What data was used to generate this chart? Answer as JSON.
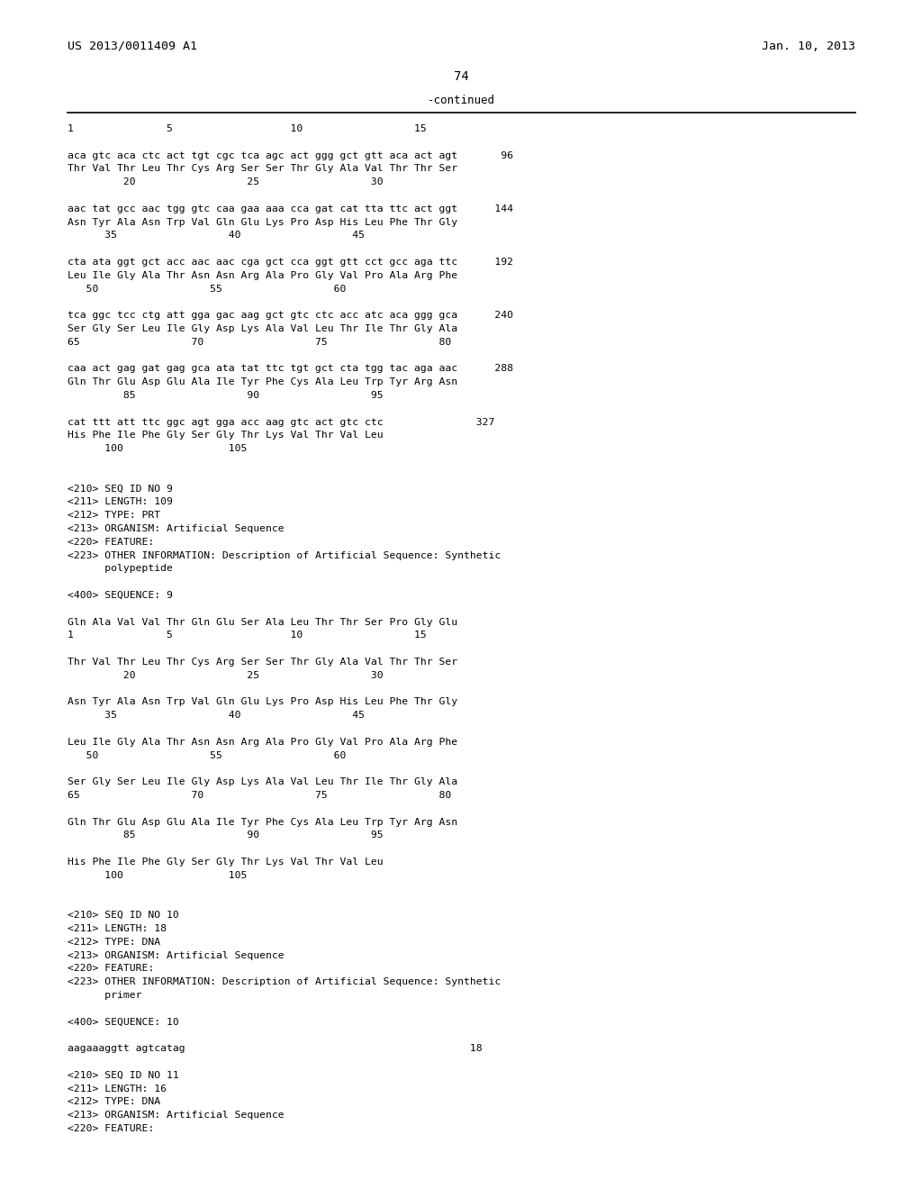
{
  "bg_color": "#ffffff",
  "header_left": "US 2013/0011409 A1",
  "header_right": "Jan. 10, 2013",
  "page_number": "74",
  "continued_label": "-continued",
  "lines": [
    "1               5                   10                  15",
    "",
    "aca gtc aca ctc act tgt cgc tca agc act ggg gct gtt aca act agt       96",
    "Thr Val Thr Leu Thr Cys Arg Ser Ser Thr Gly Ala Val Thr Thr Ser",
    "         20                  25                  30",
    "",
    "aac tat gcc aac tgg gtc caa gaa aaa cca gat cat tta ttc act ggt      144",
    "Asn Tyr Ala Asn Trp Val Gln Glu Lys Pro Asp His Leu Phe Thr Gly",
    "      35                  40                  45",
    "",
    "cta ata ggt gct acc aac aac cga gct cca ggt gtt cct gcc aga ttc      192",
    "Leu Ile Gly Ala Thr Asn Asn Arg Ala Pro Gly Val Pro Ala Arg Phe",
    "   50                  55                  60",
    "",
    "tca ggc tcc ctg att gga gac aag gct gtc ctc acc atc aca ggg gca      240",
    "Ser Gly Ser Leu Ile Gly Asp Lys Ala Val Leu Thr Ile Thr Gly Ala",
    "65                  70                  75                  80",
    "",
    "caa act gag gat gag gca ata tat ttc tgt gct cta tgg tac aga aac      288",
    "Gln Thr Glu Asp Glu Ala Ile Tyr Phe Cys Ala Leu Trp Tyr Arg Asn",
    "         85                  90                  95",
    "",
    "cat ttt att ttc ggc agt gga acc aag gtc act gtc ctc               327",
    "His Phe Ile Phe Gly Ser Gly Thr Lys Val Thr Val Leu",
    "      100                 105",
    "",
    "",
    "<210> SEQ ID NO 9",
    "<211> LENGTH: 109",
    "<212> TYPE: PRT",
    "<213> ORGANISM: Artificial Sequence",
    "<220> FEATURE:",
    "<223> OTHER INFORMATION: Description of Artificial Sequence: Synthetic",
    "      polypeptide",
    "",
    "<400> SEQUENCE: 9",
    "",
    "Gln Ala Val Val Thr Gln Glu Ser Ala Leu Thr Thr Ser Pro Gly Glu",
    "1               5                   10                  15",
    "",
    "Thr Val Thr Leu Thr Cys Arg Ser Ser Thr Gly Ala Val Thr Thr Ser",
    "         20                  25                  30",
    "",
    "Asn Tyr Ala Asn Trp Val Gln Glu Lys Pro Asp His Leu Phe Thr Gly",
    "      35                  40                  45",
    "",
    "Leu Ile Gly Ala Thr Asn Asn Arg Ala Pro Gly Val Pro Ala Arg Phe",
    "   50                  55                  60",
    "",
    "Ser Gly Ser Leu Ile Gly Asp Lys Ala Val Leu Thr Ile Thr Gly Ala",
    "65                  70                  75                  80",
    "",
    "Gln Thr Glu Asp Glu Ala Ile Tyr Phe Cys Ala Leu Trp Tyr Arg Asn",
    "         85                  90                  95",
    "",
    "His Phe Ile Phe Gly Ser Gly Thr Lys Val Thr Val Leu",
    "      100                 105",
    "",
    "",
    "<210> SEQ ID NO 10",
    "<211> LENGTH: 18",
    "<212> TYPE: DNA",
    "<213> ORGANISM: Artificial Sequence",
    "<220> FEATURE:",
    "<223> OTHER INFORMATION: Description of Artificial Sequence: Synthetic",
    "      primer",
    "",
    "<400> SEQUENCE: 10",
    "",
    "aagaaaggtt agtcatag                                              18",
    "",
    "<210> SEQ ID NO 11",
    "<211> LENGTH: 16",
    "<212> TYPE: DNA",
    "<213> ORGANISM: Artificial Sequence",
    "<220> FEATURE:"
  ]
}
